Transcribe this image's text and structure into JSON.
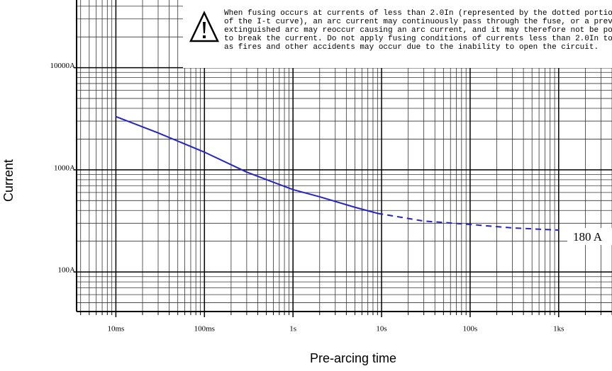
{
  "chart_data": {
    "type": "line",
    "x_label": "Pre-arcing time",
    "y_label": "Current",
    "log_x": true,
    "log_y": true,
    "grid": true,
    "xlim": [
      0.0036,
      4000
    ],
    "ylim": [
      41,
      46000
    ],
    "xticks": [
      {
        "value": 0.01,
        "label": "10ms"
      },
      {
        "value": 0.1,
        "label": "100ms"
      },
      {
        "value": 1,
        "label": "1s"
      },
      {
        "value": 10,
        "label": "10s"
      },
      {
        "value": 100,
        "label": "100s"
      },
      {
        "value": 1000,
        "label": "1ks"
      }
    ],
    "yticks": [
      {
        "value": 100,
        "label": "100A"
      },
      {
        "value": 1000,
        "label": "1000A"
      },
      {
        "value": 10000,
        "label": "10000A"
      }
    ],
    "series": [
      {
        "color": "#2424c8",
        "dashed": false,
        "x": [
          0.01,
          0.03,
          0.1,
          0.3,
          1,
          2,
          5,
          9
        ],
        "values": [
          3320,
          2300,
          1490,
          950,
          640,
          545,
          430,
          375
        ]
      },
      {
        "color": "#2424c8",
        "dashed": true,
        "x": [
          9,
          30,
          100,
          300,
          1000
        ],
        "values": [
          375,
          315,
          292,
          270,
          257
        ]
      }
    ],
    "annotation": "180 A",
    "note": [
      "When fusing occurs at currents of less than 2.0In (represented by the dotted portio",
      "of the I-t curve), an arc current may continuously pass through the fuse, or a prev",
      "extinguished arc may reoccur causing an arc current, and it may therefore not be po",
      "to break the current. Do not apply fusing conditions of currents less than 2.0In to",
      "as fires and other accidents may occur due to the inability to open the circuit."
    ]
  }
}
